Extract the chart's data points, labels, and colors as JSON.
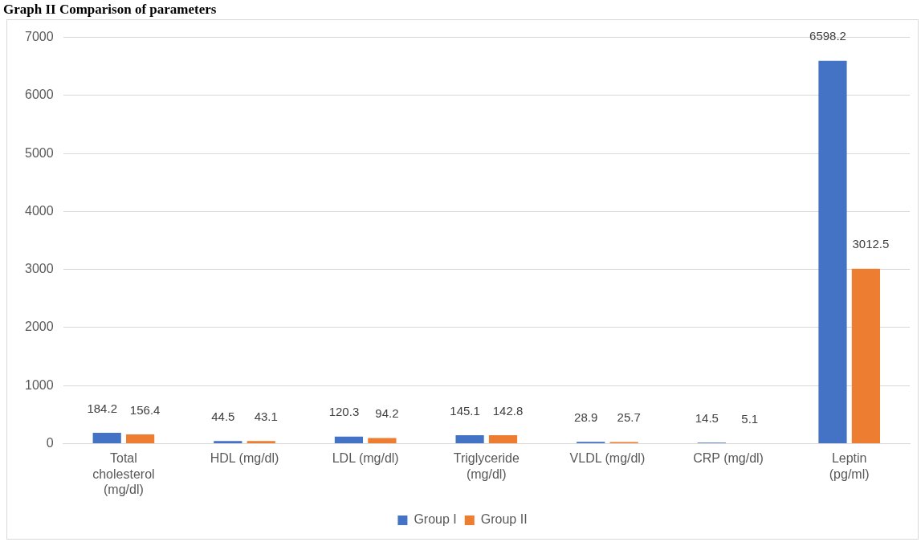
{
  "chart_data": {
    "type": "bar",
    "title": "Graph II Comparison of parameters",
    "categories": [
      "Total cholesterol (mg/dl)",
      "HDL (mg/dl)",
      "LDL (mg/dl)",
      "Triglyceride (mg/dl)",
      "VLDL (mg/dl)",
      "CRP (mg/dl)",
      "Leptin (pg/ml)"
    ],
    "series": [
      {
        "name": "Group I",
        "color": "#4472c4",
        "values": [
          184.2,
          44.5,
          120.3,
          145.1,
          28.9,
          14.5,
          6598.2
        ]
      },
      {
        "name": "Group II",
        "color": "#ed7d31",
        "values": [
          156.4,
          43.1,
          94.2,
          142.8,
          25.7,
          5.1,
          3012.5
        ]
      }
    ],
    "ylim": [
      0,
      7000
    ],
    "yticks": [
      0,
      1000,
      2000,
      3000,
      4000,
      5000,
      6000,
      7000
    ],
    "grid": "y",
    "legend": "bottom",
    "data_labels": true
  }
}
